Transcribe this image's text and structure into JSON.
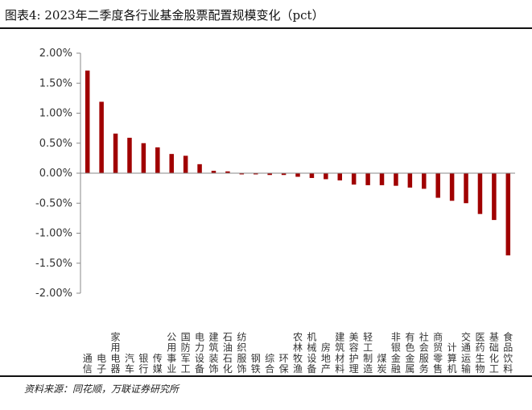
{
  "figure": {
    "title": "图表4:  2023年二季度各行业基金股票配置规模变化（pct）",
    "source": "资料来源：同花顺，万联证券研究所"
  },
  "chart_data": {
    "type": "bar",
    "title": "",
    "xlabel": "",
    "ylabel": "",
    "ylim": [
      -2.0,
      2.0
    ],
    "yticks": [
      "2.00%",
      "1.50%",
      "1.00%",
      "0.50%",
      "0.00%",
      "-0.50%",
      "-1.00%",
      "-1.50%",
      "-2.00%"
    ],
    "categories": [
      "通信",
      "电子",
      "家用电器",
      "汽车",
      "银行",
      "传媒",
      "公用事业",
      "国防军工",
      "电力设备",
      "建筑装饰",
      "石油石化",
      "纺织服饰",
      "钢铁",
      "综合",
      "环保",
      "农林牧渔",
      "机械设备",
      "房地产",
      "建筑材料",
      "美容护理",
      "轻工制造",
      "煤炭",
      "非银金融",
      "有色金属",
      "社会服务",
      "商贸零售",
      "计算机",
      "交通运输",
      "医药生物",
      "基础化工",
      "食品饮料"
    ],
    "series": [
      {
        "values": [
          1.71,
          1.19,
          0.66,
          0.59,
          0.5,
          0.43,
          0.32,
          0.29,
          0.15,
          0.04,
          0.03,
          -0.02,
          -0.02,
          -0.03,
          -0.03,
          -0.06,
          -0.08,
          -0.1,
          -0.12,
          -0.19,
          -0.2,
          -0.2,
          -0.21,
          -0.24,
          -0.26,
          -0.41,
          -0.46,
          -0.5,
          -0.68,
          -0.78,
          -1.37
        ],
        "color": "#a00000"
      }
    ],
    "grid": false,
    "legend": "none"
  }
}
